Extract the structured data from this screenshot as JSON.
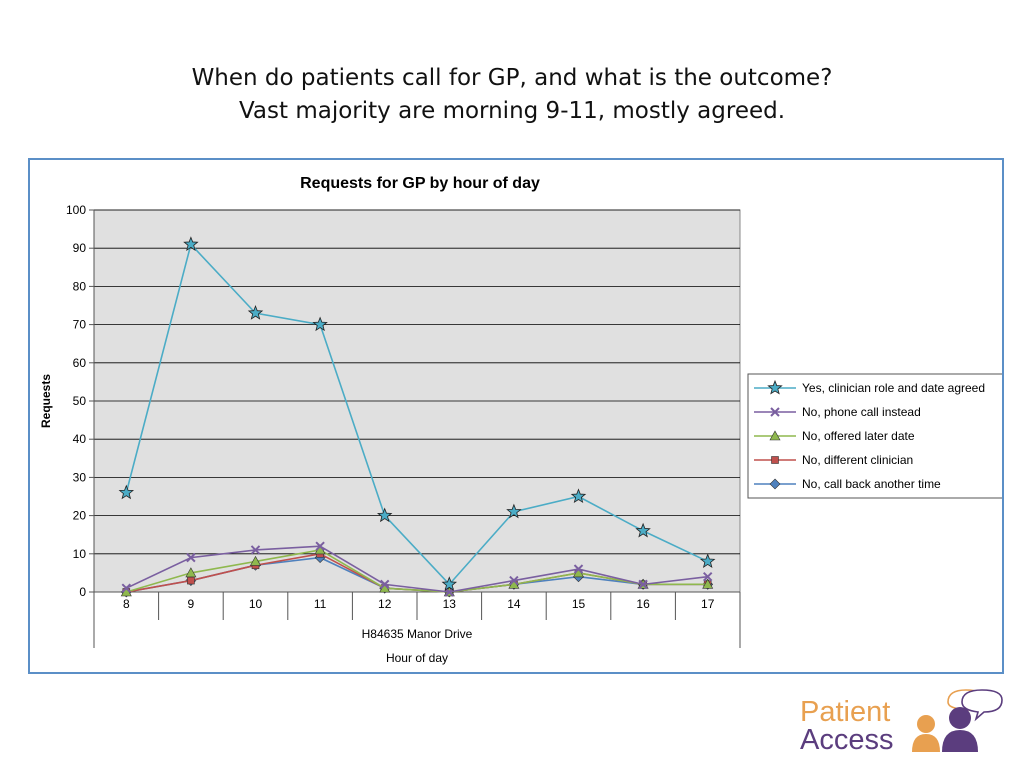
{
  "slide": {
    "title_line1": "When do patients call for GP, and what is the outcome?",
    "title_line2": "Vast majority are morning 9-11, mostly agreed."
  },
  "logo": {
    "line1": "Patient",
    "line2": "Access"
  },
  "colors": {
    "plot_background": "#e0e0e0",
    "frame_border": "#5b8fc7",
    "logo_orange": "#e8a050",
    "logo_purple": "#5b3d7e"
  },
  "chart_data": {
    "type": "line",
    "title": "Requests for GP by hour of day",
    "ylabel": "Requests",
    "xlabel": "Hour of day",
    "group_label": "H84635 Manor Drive",
    "x": [
      "8",
      "9",
      "10",
      "11",
      "12",
      "13",
      "14",
      "15",
      "16",
      "17"
    ],
    "ylim": [
      0,
      100
    ],
    "ytick_step": 10,
    "grid": true,
    "legend_position": "right",
    "series": [
      {
        "name": "Yes, clinician role and date agreed",
        "color": "#4bacc6",
        "marker": "star",
        "values": [
          26,
          91,
          73,
          70,
          20,
          2,
          21,
          25,
          16,
          8
        ]
      },
      {
        "name": "No, phone call instead",
        "color": "#7a5fa0",
        "marker": "x",
        "values": [
          1,
          9,
          11,
          12,
          2,
          0,
          3,
          6,
          2,
          4
        ]
      },
      {
        "name": "No, offered later date",
        "color": "#8fb84e",
        "marker": "triangle",
        "values": [
          0,
          5,
          8,
          11,
          1,
          0,
          2,
          5,
          2,
          2
        ]
      },
      {
        "name": "No, different clinician",
        "color": "#c0504d",
        "marker": "square",
        "values": [
          0,
          3,
          7,
          10,
          1,
          0,
          2,
          5,
          2,
          2
        ]
      },
      {
        "name": "No, call back another time",
        "color": "#4f81bd",
        "marker": "diamond",
        "values": [
          0,
          3,
          7,
          9,
          1,
          0,
          2,
          4,
          2,
          2
        ]
      }
    ]
  }
}
